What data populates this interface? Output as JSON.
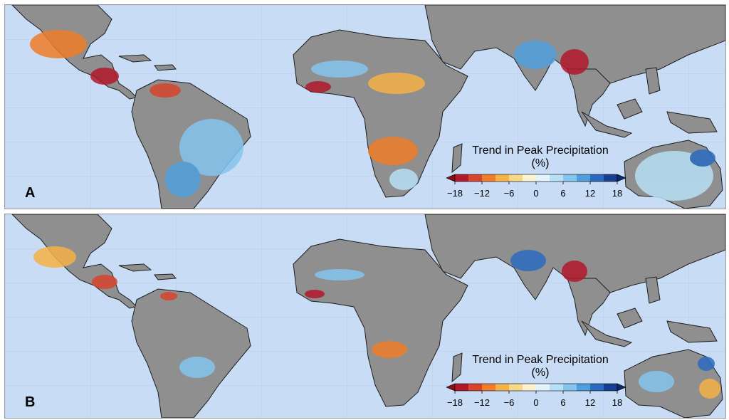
{
  "panels": [
    {
      "label": "A"
    },
    {
      "label": "B"
    }
  ],
  "legend": {
    "title_line1": "Trend in Peak Precipitation",
    "title_line2": "(%)",
    "ticks": [
      "−18",
      "−12",
      "−6",
      "0",
      "6",
      "12",
      "18"
    ],
    "colors": [
      "#b2182b",
      "#d6452c",
      "#ef7d29",
      "#f5b247",
      "#f7d889",
      "#fbf3cf",
      "#e4f2fb",
      "#b7e0f6",
      "#84c5ee",
      "#4f9fdc",
      "#2b6bbf",
      "#163f8f"
    ],
    "arrow_left_color": "#8c0d19",
    "arrow_right_color": "#0c2a6b"
  },
  "map_colors": {
    "ocean": "#c9dcf5",
    "land": "#8f8f8f",
    "border": "#1c1c1c"
  }
}
